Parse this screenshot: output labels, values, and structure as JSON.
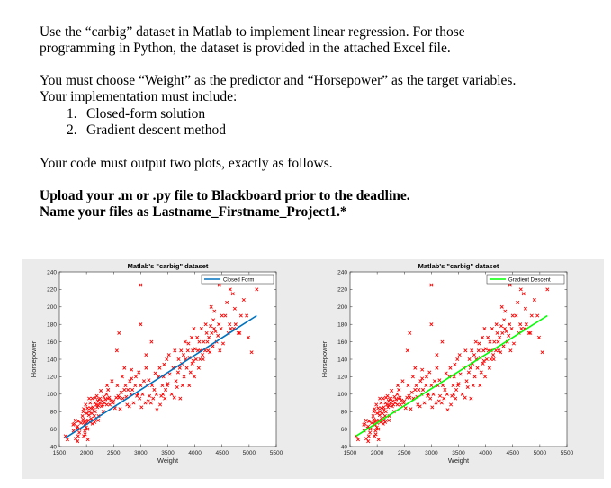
{
  "document": {
    "intro_line1": "Use the “carbig” dataset in Matlab to implement linear regression. For those",
    "intro_line2": "programming in Python, the dataset is provided in the attached Excel file.",
    "choose_line1": "You must choose “Weight” as the predictor and “Horsepower” as the target variables.",
    "choose_line2": "Your implementation must include:",
    "list": [
      {
        "num": "1.",
        "text": "Closed-form solution"
      },
      {
        "num": "2.",
        "text": "Gradient descent method"
      }
    ],
    "output_line": "Your code must output two plots, exactly as follows.",
    "upload_line1": "Upload your .m or .py file to Blackboard prior to the deadline.",
    "upload_line2": "Name your files as Lastname_Firstname_Project1.*"
  },
  "chart_data": [
    {
      "type": "scatter",
      "title": "Matlab's \"carbig\" dataset",
      "xlabel": "Weight",
      "ylabel": "Horsepower",
      "xlim": [
        1500,
        5500
      ],
      "ylim": [
        40,
        240
      ],
      "xticks": [
        1500,
        2000,
        2500,
        3000,
        3500,
        4000,
        4500,
        5000,
        5500
      ],
      "yticks": [
        40,
        60,
        80,
        100,
        120,
        140,
        160,
        180,
        200,
        220,
        240
      ],
      "legend_position": "top-right",
      "series": [
        {
          "name": "",
          "kind": "points",
          "color": "#ff0000",
          "marker": "x"
        },
        {
          "name": "Closed Form",
          "kind": "line",
          "color": "#0072bd",
          "x": [
            1613,
            5140
          ],
          "y": [
            50,
            190
          ]
        }
      ]
    },
    {
      "type": "scatter",
      "title": "Matlab's \"carbig\" dataset",
      "xlabel": "Weight",
      "ylabel": "Horsepower",
      "xlim": [
        1500,
        5500
      ],
      "ylim": [
        40,
        240
      ],
      "xticks": [
        1500,
        2000,
        2500,
        3000,
        3500,
        4000,
        4500,
        5000,
        5500
      ],
      "yticks": [
        40,
        60,
        80,
        100,
        120,
        140,
        160,
        180,
        200,
        220,
        240
      ],
      "legend_position": "top-right",
      "series": [
        {
          "name": "",
          "kind": "points",
          "color": "#ff0000",
          "marker": "x"
        },
        {
          "name": "Gradient Descent",
          "kind": "line",
          "color": "#00ff00",
          "x": [
            1613,
            5140
          ],
          "y": [
            52,
            190
          ]
        }
      ]
    }
  ],
  "scatter_points": [
    [
      1613,
      52
    ],
    [
      1649,
      48
    ],
    [
      1755,
      65
    ],
    [
      1760,
      58
    ],
    [
      1773,
      66
    ],
    [
      1795,
      70
    ],
    [
      1800,
      49
    ],
    [
      1825,
      61
    ],
    [
      1834,
      63
    ],
    [
      1835,
      46
    ],
    [
      1845,
      52
    ],
    [
      1850,
      69
    ],
    [
      1867,
      56
    ],
    [
      1875,
      60
    ],
    [
      1900,
      67
    ],
    [
      1925,
      75
    ],
    [
      1937,
      71
    ],
    [
      1940,
      80
    ],
    [
      1950,
      52
    ],
    [
      1955,
      68
    ],
    [
      1965,
      65
    ],
    [
      1968,
      58
    ],
    [
      1975,
      54
    ],
    [
      1985,
      88
    ],
    [
      1990,
      70
    ],
    [
      1995,
      62
    ],
    [
      2000,
      78
    ],
    [
      2003,
      67
    ],
    [
      2019,
      84
    ],
    [
      2020,
      60
    ],
    [
      2025,
      48
    ],
    [
      2035,
      70
    ],
    [
      2045,
      76
    ],
    [
      2050,
      80
    ],
    [
      2065,
      68
    ],
    [
      2070,
      90
    ],
    [
      2074,
      84
    ],
    [
      2085,
      72
    ],
    [
      2100,
      78
    ],
    [
      2108,
      95
    ],
    [
      2110,
      66
    ],
    [
      2120,
      85
    ],
    [
      2125,
      70
    ],
    [
      2130,
      82
    ],
    [
      2145,
      75
    ],
    [
      2150,
      68
    ],
    [
      2155,
      90
    ],
    [
      2160,
      80
    ],
    [
      2164,
      96
    ],
    [
      2180,
      88
    ],
    [
      2190,
      98
    ],
    [
      2200,
      85
    ],
    [
      2210,
      92
    ],
    [
      2215,
      70
    ],
    [
      2220,
      87
    ],
    [
      2223,
      75
    ],
    [
      2230,
      94
    ],
    [
      2245,
      90
    ],
    [
      2250,
      95
    ],
    [
      2265,
      104
    ],
    [
      2278,
      86
    ],
    [
      2290,
      92
    ],
    [
      2300,
      88
    ],
    [
      2310,
      80
    ],
    [
      2320,
      97
    ],
    [
      2330,
      90
    ],
    [
      2350,
      94
    ],
    [
      2370,
      100
    ],
    [
      2380,
      110
    ],
    [
      2395,
      95
    ],
    [
      2400,
      105
    ],
    [
      2420,
      96
    ],
    [
      2430,
      88
    ],
    [
      2450,
      93
    ],
    [
      2470,
      115
    ],
    [
      2490,
      90
    ],
    [
      2500,
      92
    ],
    [
      2525,
      84
    ],
    [
      2550,
      96
    ],
    [
      2570,
      110
    ],
    [
      2585,
      98
    ],
    [
      2600,
      96
    ],
    [
      2620,
      83
    ],
    [
      2640,
      102
    ],
    [
      2660,
      120
    ],
    [
      2670,
      95
    ],
    [
      2700,
      105
    ],
    [
      2720,
      110
    ],
    [
      2735,
      97
    ],
    [
      2750,
      88
    ],
    [
      2766,
      105
    ],
    [
      2790,
      86
    ],
    [
      2800,
      115
    ],
    [
      2820,
      100
    ],
    [
      2830,
      118
    ],
    [
      2845,
      105
    ],
    [
      2870,
      90
    ],
    [
      2900,
      110
    ],
    [
      2910,
      120
    ],
    [
      2930,
      98
    ],
    [
      2945,
      100
    ],
    [
      2965,
      125
    ],
    [
      2980,
      95
    ],
    [
      3000,
      110
    ],
    [
      3015,
      85
    ],
    [
      3035,
      100
    ],
    [
      3060,
      115
    ],
    [
      3085,
      90
    ],
    [
      3100,
      130
    ],
    [
      3120,
      110
    ],
    [
      3139,
      92
    ],
    [
      3150,
      116
    ],
    [
      3160,
      98
    ],
    [
      3190,
      90
    ],
    [
      3210,
      110
    ],
    [
      3230,
      95
    ],
    [
      3250,
      105
    ],
    [
      3270,
      124
    ],
    [
      3290,
      100
    ],
    [
      3300,
      82
    ],
    [
      3330,
      120
    ],
    [
      3350,
      130
    ],
    [
      3360,
      88
    ],
    [
      3380,
      98
    ],
    [
      3400,
      110
    ],
    [
      3410,
      100
    ],
    [
      3420,
      120
    ],
    [
      3432,
      134
    ],
    [
      3445,
      95
    ],
    [
      3460,
      105
    ],
    [
      3480,
      140
    ],
    [
      3490,
      110
    ],
    [
      3500,
      112
    ],
    [
      3520,
      145
    ],
    [
      3535,
      123
    ],
    [
      3570,
      100
    ],
    [
      3600,
      130
    ],
    [
      3620,
      96
    ],
    [
      3630,
      150
    ],
    [
      3650,
      115
    ],
    [
      3670,
      108
    ],
    [
      3690,
      125
    ],
    [
      3700,
      140
    ],
    [
      3720,
      130
    ],
    [
      3730,
      95
    ],
    [
      3745,
      150
    ],
    [
      3760,
      135
    ],
    [
      3770,
      110
    ],
    [
      3790,
      145
    ],
    [
      3800,
      120
    ],
    [
      3820,
      160
    ],
    [
      3830,
      140
    ],
    [
      3850,
      130
    ],
    [
      3870,
      150
    ],
    [
      3880,
      158
    ],
    [
      3895,
      110
    ],
    [
      3900,
      142
    ],
    [
      3920,
      125
    ],
    [
      3940,
      165
    ],
    [
      3950,
      135
    ],
    [
      3960,
      150
    ],
    [
      3970,
      138
    ],
    [
      3990,
      120
    ],
    [
      4000,
      152
    ],
    [
      4020,
      140
    ],
    [
      4042,
      165
    ],
    [
      4055,
      150
    ],
    [
      4070,
      130
    ],
    [
      4080,
      160
    ],
    [
      4096,
      140
    ],
    [
      4100,
      150
    ],
    [
      4120,
      175
    ],
    [
      4140,
      145
    ],
    [
      4150,
      140
    ],
    [
      4160,
      160
    ],
    [
      4190,
      150
    ],
    [
      4200,
      180
    ],
    [
      4215,
      170
    ],
    [
      4230,
      160
    ],
    [
      4245,
      150
    ],
    [
      4257,
      165
    ],
    [
      4274,
      148
    ],
    [
      4290,
      178
    ],
    [
      4300,
      200
    ],
    [
      4310,
      170
    ],
    [
      4330,
      155
    ],
    [
      4340,
      185
    ],
    [
      4354,
      175
    ],
    [
      4360,
      195
    ],
    [
      4380,
      172
    ],
    [
      4400,
      160
    ],
    [
      4425,
      167
    ],
    [
      4440,
      180
    ],
    [
      4460,
      150
    ],
    [
      4480,
      175
    ],
    [
      4499,
      190
    ],
    [
      4520,
      158
    ],
    [
      4560,
      190
    ],
    [
      4590,
      205
    ],
    [
      4615,
      170
    ],
    [
      4640,
      180
    ],
    [
      4660,
      175
    ],
    [
      4699,
      215
    ],
    [
      4720,
      175
    ],
    [
      4735,
      198
    ],
    [
      4750,
      180
    ],
    [
      4800,
      170
    ],
    [
      4825,
      170
    ],
    [
      4900,
      208
    ],
    [
      4955,
      190
    ],
    [
      5045,
      148
    ],
    [
      5140,
      220
    ],
    [
      3000,
      225
    ],
    [
      2375,
      88
    ],
    [
      2600,
      170
    ],
    [
      3000,
      180
    ],
    [
      3200,
      160
    ],
    [
      2560,
      150
    ],
    [
      2700,
      130
    ],
    [
      3100,
      145
    ],
    [
      4850,
      190
    ],
    [
      4985,
      165
    ],
    [
      1950,
      83
    ],
    [
      2050,
      95
    ],
    [
      2830,
      128
    ],
    [
      3980,
      175
    ],
    [
      4450,
      225
    ],
    [
      4650,
      220
    ]
  ]
}
